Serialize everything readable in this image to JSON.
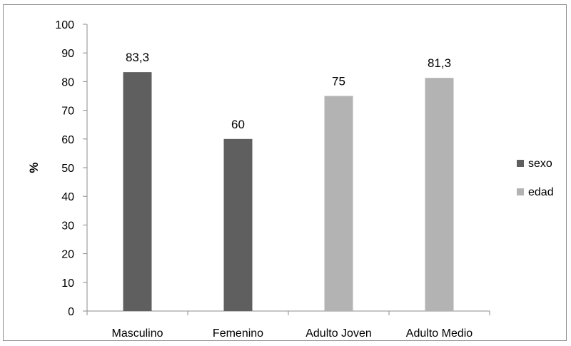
{
  "chart_data": {
    "type": "bar",
    "categories": [
      "Masculino",
      "Femenino",
      "Adulto Joven",
      "Adulto Medio"
    ],
    "series": [
      {
        "name": "sexo",
        "color": "#5f5f5f",
        "values": [
          83.3,
          60,
          null,
          null
        ],
        "labels": [
          "83,3",
          "60",
          "",
          ""
        ]
      },
      {
        "name": "edad",
        "color": "#b3b3b3",
        "values": [
          null,
          null,
          75,
          81.3
        ],
        "labels": [
          "",
          "",
          "75",
          "81,3"
        ]
      }
    ],
    "ylabel": "%",
    "ylim": [
      0,
      100
    ],
    "yticks": [
      "0",
      "10",
      "20",
      "30",
      "40",
      "50",
      "60",
      "70",
      "80",
      "90",
      "100"
    ],
    "grid": false,
    "legend": "right"
  }
}
